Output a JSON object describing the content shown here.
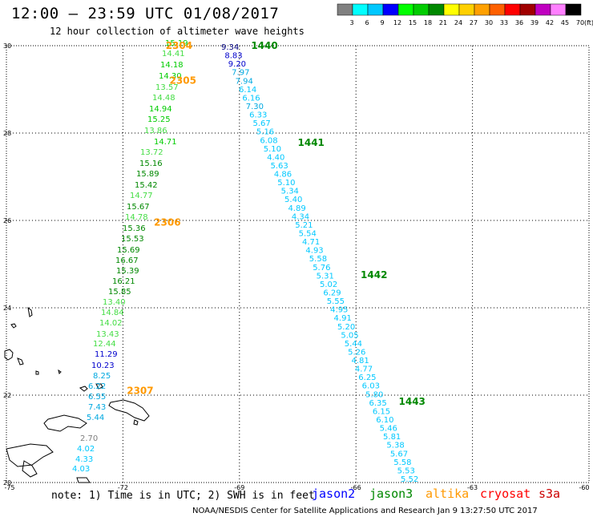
{
  "header": {
    "title": "12:00 – 23:59 UTC 01/08/2017",
    "subtitle": "12 hour collection of altimeter wave heights"
  },
  "colorbar": {
    "colors": [
      "#808080",
      "#00ffff",
      "#00c8ff",
      "#0000ff",
      "#00ff00",
      "#00cc00",
      "#008800",
      "#ffff00",
      "#ffd000",
      "#ffa000",
      "#ff6000",
      "#ff0000",
      "#a00000",
      "#c000c0",
      "#ff80ff",
      "#000000"
    ],
    "labels": [
      "3",
      "6",
      "9",
      "12",
      "15",
      "18",
      "21",
      "24",
      "27",
      "30",
      "33",
      "36",
      "39",
      "42",
      "45",
      "70"
    ],
    "unit": "(ft)"
  },
  "axes": {
    "lon_ticks": [
      "-75",
      "-72",
      "-69",
      "-66",
      "-63",
      "-60"
    ],
    "lat_ticks": [
      "30",
      "28",
      "26",
      "24",
      "22",
      "20"
    ]
  },
  "track_west": {
    "heights": [
      "15.19",
      "14.41",
      "14.18",
      "14.30",
      "13.57",
      "14.48",
      "14.94",
      "15.25",
      "13.86",
      "14.71",
      "13.72",
      "15.16",
      "15.89",
      "15.42",
      "14.77",
      "15.67",
      "14.78",
      "15.36",
      "15.53",
      "15.69",
      "16.67",
      "15.39",
      "16.21",
      "15.85",
      "13.40",
      "14.84",
      "14.02",
      "13.43",
      "12.44",
      "11.29",
      "10.23",
      "8.25",
      "6.22",
      "6.55",
      "7.43",
      "5.44",
      "2.70",
      "4.02",
      "4.33",
      "4.03"
    ],
    "colors": [
      "#00cc00",
      "#44dd44",
      "#00cc00",
      "#00cc00",
      "#44dd44",
      "#44dd44",
      "#00cc00",
      "#00cc00",
      "#44dd44",
      "#00cc00",
      "#44dd44",
      "#008800",
      "#008800",
      "#008800",
      "#44dd44",
      "#008800",
      "#44dd44",
      "#008800",
      "#008800",
      "#008800",
      "#008800",
      "#008800",
      "#008800",
      "#008800",
      "#44dd44",
      "#44dd44",
      "#44dd44",
      "#44dd44",
      "#44dd44",
      "#0000cc",
      "#0000cc",
      "#00a8e0",
      "#00a8e0",
      "#00a8e0",
      "#00a8e0",
      "#00a8e0",
      "#808080",
      "#00c8ff",
      "#00c8ff",
      "#00c8ff"
    ]
  },
  "track_east": {
    "heights": [
      "9.34",
      "8.83",
      "9.20",
      "7.97",
      "7.94",
      "6.14",
      "6.16",
      "7.30",
      "6.33",
      "5.67",
      "5.16",
      "6.08",
      "5.10",
      "4.40",
      "5.63",
      "4.86",
      "5.10",
      "5.34",
      "5.40",
      "4.89",
      "4.34",
      "5.21",
      "5.54",
      "4.71",
      "4.93",
      "5.58",
      "5.76",
      "5.31",
      "5.02",
      "6.29",
      "5.55",
      "4.95",
      "4.91",
      "5.20",
      "5.05",
      "5.44",
      "5.26",
      "4.81",
      "4.77",
      "6.25",
      "6.03",
      "5.80",
      "6.35",
      "6.15",
      "6.10",
      "5.46",
      "5.81",
      "5.38",
      "5.67",
      "5.58",
      "5.53",
      "5.52"
    ],
    "colors": [
      "#000080",
      "#0000cc",
      "#0000cc",
      "#00a8e0",
      "#00a8e0",
      "#00c8ff",
      "#00c8ff",
      "#00a8e0",
      "#00c8ff",
      "#00c8ff",
      "#00c8ff",
      "#00c8ff",
      "#00c8ff",
      "#00c8ff",
      "#00c8ff",
      "#00c8ff",
      "#00c8ff",
      "#00c8ff",
      "#00c8ff",
      "#00c8ff",
      "#00c8ff",
      "#00c8ff",
      "#00c8ff",
      "#00c8ff",
      "#00c8ff",
      "#00c8ff",
      "#00c8ff",
      "#00c8ff",
      "#00c8ff",
      "#00c8ff",
      "#00c8ff",
      "#00c8ff",
      "#00c8ff",
      "#00c8ff",
      "#00c8ff",
      "#00c8ff",
      "#00c8ff",
      "#00c8ff",
      "#00c8ff",
      "#00c8ff",
      "#00c8ff",
      "#00c8ff",
      "#00c8ff",
      "#00c8ff",
      "#00c8ff",
      "#00c8ff",
      "#00c8ff",
      "#00c8ff",
      "#00c8ff",
      "#00c8ff",
      "#00c8ff",
      "#00c8ff"
    ]
  },
  "time_labels": [
    {
      "text": "2304",
      "color": "#ff9900",
      "lon": -70.9,
      "lat": 30.0
    },
    {
      "text": "1440",
      "color": "#008800",
      "lon": -68.7,
      "lat": 30.0
    },
    {
      "text": "2305",
      "color": "#ff9900",
      "lon": -70.8,
      "lat": 29.2
    },
    {
      "text": "1441",
      "color": "#008800",
      "lon": -67.5,
      "lat": 27.78
    },
    {
      "text": "2306",
      "color": "#ff9900",
      "lon": -71.2,
      "lat": 25.95
    },
    {
      "text": "1442",
      "color": "#008800",
      "lon": -65.88,
      "lat": 24.75
    },
    {
      "text": "2307",
      "color": "#ff9900",
      "lon": -71.9,
      "lat": 22.1
    },
    {
      "text": "1443",
      "color": "#008800",
      "lon": -64.9,
      "lat": 21.85
    }
  ],
  "note": "note: 1) Time is in UTC; 2) SWH is in feet",
  "satellites": [
    {
      "name": "jason2",
      "color": "#0000ff"
    },
    {
      "name": "jason3",
      "color": "#008800"
    },
    {
      "name": "altika",
      "color": "#ff9900"
    },
    {
      "name": "cryosat",
      "color": "#ff0000"
    },
    {
      "name": "s3a",
      "color": "#cc0000"
    }
  ],
  "footer": "NOAA/NESDIS Center for Satellite Applications and Research   Jan  9 13:27:50 UTC 2017"
}
